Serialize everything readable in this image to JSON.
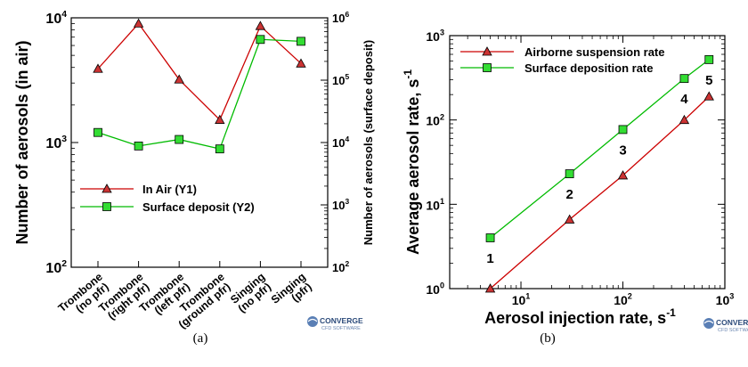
{
  "colors": {
    "red": "#cc0000",
    "green": "#00bb00",
    "marker_red": "#cc3333",
    "marker_green": "#33dd33"
  },
  "logo": {
    "name": "CONVERGE",
    "sub": "CFD SOFTWARE",
    "icon": "converge-logo-icon"
  },
  "chart_data": [
    {
      "type": "line",
      "caption": "(a)",
      "categories": [
        "Trombone\n(no pfr)",
        "Trombone\n(right pfr)",
        "Trombone\n(left pfr)",
        "Trombone\n(ground pfr)",
        "Singing\n(no pfr)",
        "Singing\n(pfr)"
      ],
      "ylabel": "Number of aerosols (in air)",
      "y2label": "Number of aerosols (surface deposit)",
      "ylim": [
        100,
        10000
      ],
      "y2lim": [
        100,
        1000000
      ],
      "log": true,
      "yticks": [
        "10",
        "10",
        "10"
      ],
      "yticks_exp": [
        "2",
        "3",
        "4"
      ],
      "y2ticks": [
        "10",
        "10",
        "10",
        "10",
        "10"
      ],
      "y2ticks_exp": [
        "2",
        "3",
        "4",
        "5",
        "6"
      ],
      "legend_position": "lower-left",
      "series": [
        {
          "name": "In Air (Y1)",
          "axis": "y1",
          "marker": "triangle",
          "values": [
            3900,
            9000,
            3200,
            1520,
            8600,
            4300
          ]
        },
        {
          "name": "Surface deposit (Y2)",
          "axis": "y2",
          "marker": "square",
          "values": [
            14500,
            8800,
            11200,
            7900,
            450000,
            420000
          ]
        }
      ]
    },
    {
      "type": "line",
      "caption": "(b)",
      "xlabel": "Aerosol injection rate, s",
      "xlabel_sup": "-1",
      "ylabel": "Average aerosol rate, s",
      "ylabel_sup": "-1",
      "xlim": [
        2,
        1000
      ],
      "ylim": [
        1,
        1000
      ],
      "log": true,
      "xticks": [
        "10",
        "10",
        "10"
      ],
      "xticks_exp": [
        "1",
        "2",
        "3"
      ],
      "yticks": [
        "10",
        "10",
        "10",
        "10"
      ],
      "yticks_exp": [
        "0",
        "1",
        "2",
        "3"
      ],
      "x": [
        5,
        30,
        100,
        400,
        700
      ],
      "point_labels": [
        "1",
        "2",
        "3",
        "4",
        "5"
      ],
      "legend_position": "top-left",
      "series": [
        {
          "name": "Airborne suspension rate",
          "marker": "triangle",
          "values": [
            1,
            6.6,
            22,
            100,
            190
          ]
        },
        {
          "name": "Surface deposition rate",
          "marker": "square",
          "values": [
            4,
            23,
            77,
            310,
            520
          ]
        }
      ]
    }
  ]
}
